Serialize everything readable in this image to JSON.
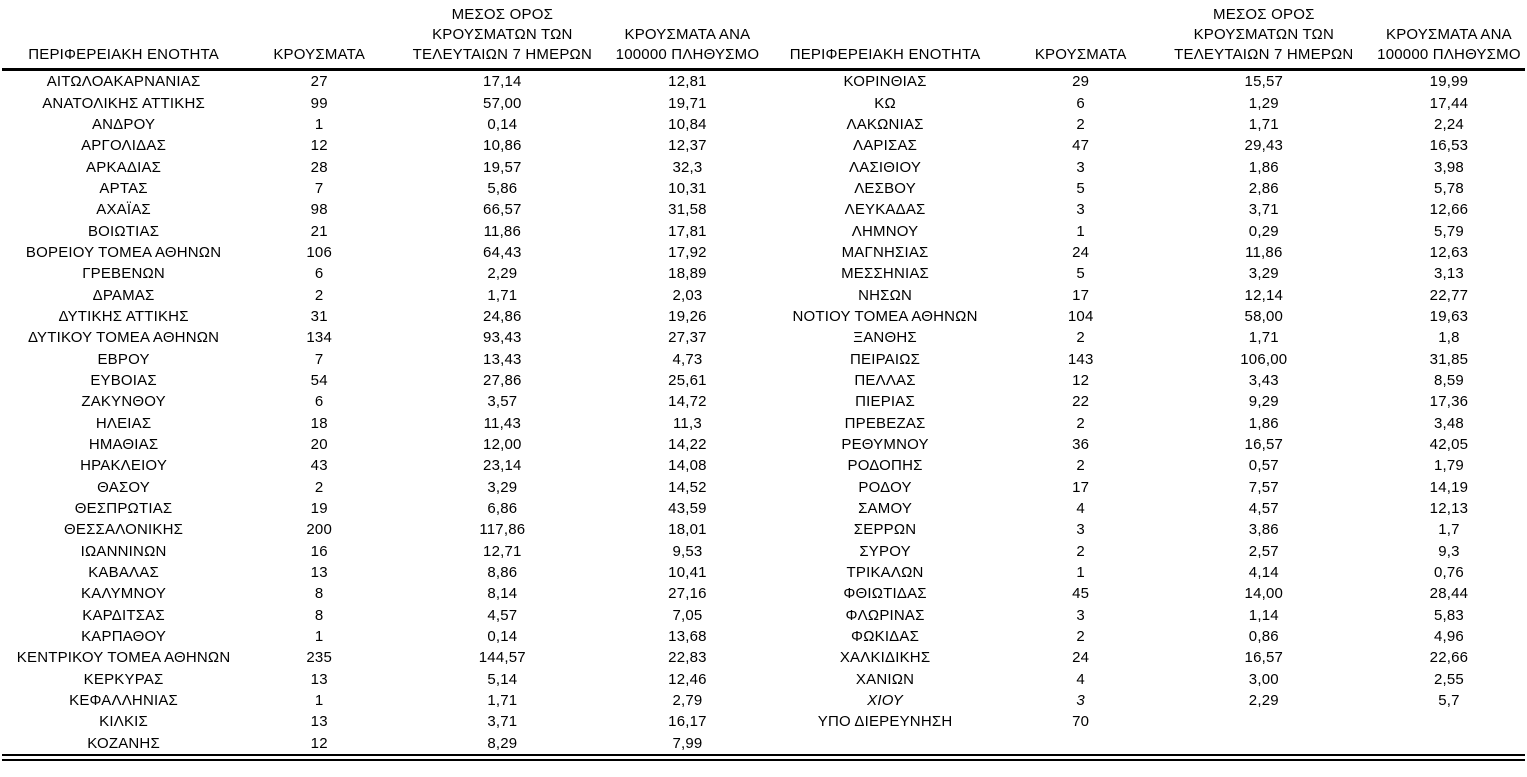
{
  "table": {
    "headers": {
      "region": "ΠΕΡΙΦΕΡΕΙΑΚΗ ΕΝΟΤΗΤΑ",
      "cases": "ΚΡΟΥΣΜΑΤΑ",
      "avg7_lines": [
        "ΜΕΣΟΣ ΟΡΟΣ",
        "ΚΡΟΥΣΜΑΤΩΝ ΤΩΝ",
        "ΤΕΛΕΥΤΑΙΩΝ 7 ΗΜΕΡΩΝ"
      ],
      "per100k_lines": [
        "ΚΡΟΥΣΜΑΤΑ ΑΝΑ",
        "100000 ΠΛΗΘΥΣΜΟ"
      ]
    },
    "left_rows": [
      {
        "name": "ΑΙΤΩΛΟΑΚΑΡΝΑΝΙΑΣ",
        "cases": "27",
        "avg7": "17,14",
        "per100k": "12,81"
      },
      {
        "name": "ΑΝΑΤΟΛΙΚΗΣ ΑΤΤΙΚΗΣ",
        "cases": "99",
        "avg7": "57,00",
        "per100k": "19,71"
      },
      {
        "name": "ΑΝΔΡΟΥ",
        "cases": "1",
        "avg7": "0,14",
        "per100k": "10,84"
      },
      {
        "name": "ΑΡΓΟΛΙΔΑΣ",
        "cases": "12",
        "avg7": "10,86",
        "per100k": "12,37"
      },
      {
        "name": "ΑΡΚΑΔΙΑΣ",
        "cases": "28",
        "avg7": "19,57",
        "per100k": "32,3"
      },
      {
        "name": "ΑΡΤΑΣ",
        "cases": "7",
        "avg7": "5,86",
        "per100k": "10,31"
      },
      {
        "name": "ΑΧΑΪΑΣ",
        "cases": "98",
        "avg7": "66,57",
        "per100k": "31,58"
      },
      {
        "name": "ΒΟΙΩΤΙΑΣ",
        "cases": "21",
        "avg7": "11,86",
        "per100k": "17,81"
      },
      {
        "name": "ΒΟΡΕΙΟΥ ΤΟΜΕΑ ΑΘΗΝΩΝ",
        "cases": "106",
        "avg7": "64,43",
        "per100k": "17,92"
      },
      {
        "name": "ΓΡΕΒΕΝΩΝ",
        "cases": "6",
        "avg7": "2,29",
        "per100k": "18,89"
      },
      {
        "name": "ΔΡΑΜΑΣ",
        "cases": "2",
        "avg7": "1,71",
        "per100k": "2,03"
      },
      {
        "name": "ΔΥΤΙΚΗΣ ΑΤΤΙΚΗΣ",
        "cases": "31",
        "avg7": "24,86",
        "per100k": "19,26"
      },
      {
        "name": "ΔΥΤΙΚΟΥ ΤΟΜΕΑ ΑΘΗΝΩΝ",
        "cases": "134",
        "avg7": "93,43",
        "per100k": "27,37"
      },
      {
        "name": "ΕΒΡΟΥ",
        "cases": "7",
        "avg7": "13,43",
        "per100k": "4,73"
      },
      {
        "name": "ΕΥΒΟΙΑΣ",
        "cases": "54",
        "avg7": "27,86",
        "per100k": "25,61"
      },
      {
        "name": "ΖΑΚΥΝΘΟΥ",
        "cases": "6",
        "avg7": "3,57",
        "per100k": "14,72"
      },
      {
        "name": "ΗΛΕΙΑΣ",
        "cases": "18",
        "avg7": "11,43",
        "per100k": "11,3"
      },
      {
        "name": "ΗΜΑΘΙΑΣ",
        "cases": "20",
        "avg7": "12,00",
        "per100k": "14,22"
      },
      {
        "name": "ΗΡΑΚΛΕΙΟΥ",
        "cases": "43",
        "avg7": "23,14",
        "per100k": "14,08"
      },
      {
        "name": "ΘΑΣΟΥ",
        "cases": "2",
        "avg7": "3,29",
        "per100k": "14,52"
      },
      {
        "name": "ΘΕΣΠΡΩΤΙΑΣ",
        "cases": "19",
        "avg7": "6,86",
        "per100k": "43,59"
      },
      {
        "name": "ΘΕΣΣΑΛΟΝΙΚΗΣ",
        "cases": "200",
        "avg7": "117,86",
        "per100k": "18,01"
      },
      {
        "name": "ΙΩΑΝΝΙΝΩΝ",
        "cases": "16",
        "avg7": "12,71",
        "per100k": "9,53"
      },
      {
        "name": "ΚΑΒΑΛΑΣ",
        "cases": "13",
        "avg7": "8,86",
        "per100k": "10,41"
      },
      {
        "name": "ΚΑΛΥΜΝΟΥ",
        "cases": "8",
        "avg7": "8,14",
        "per100k": "27,16"
      },
      {
        "name": "ΚΑΡΔΙΤΣΑΣ",
        "cases": "8",
        "avg7": "4,57",
        "per100k": "7,05"
      },
      {
        "name": "ΚΑΡΠΑΘΟΥ",
        "cases": "1",
        "avg7": "0,14",
        "per100k": "13,68"
      },
      {
        "name": "ΚΕΝΤΡΙΚΟΥ ΤΟΜΕΑ ΑΘΗΝΩΝ",
        "cases": "235",
        "avg7": "144,57",
        "per100k": "22,83"
      },
      {
        "name": "ΚΕΡΚΥΡΑΣ",
        "cases": "13",
        "avg7": "5,14",
        "per100k": "12,46"
      },
      {
        "name": "ΚΕΦΑΛΛΗΝΙΑΣ",
        "cases": "1",
        "avg7": "1,71",
        "per100k": "2,79"
      },
      {
        "name": "ΚΙΛΚΙΣ",
        "cases": "13",
        "avg7": "3,71",
        "per100k": "16,17"
      },
      {
        "name": "ΚΟΖΑΝΗΣ",
        "cases": "12",
        "avg7": "8,29",
        "per100k": "7,99"
      }
    ],
    "right_rows": [
      {
        "name": "ΚΟΡΙΝΘΙΑΣ",
        "cases": "29",
        "avg7": "15,57",
        "per100k": "19,99"
      },
      {
        "name": "ΚΩ",
        "cases": "6",
        "avg7": "1,29",
        "per100k": "17,44"
      },
      {
        "name": "ΛΑΚΩΝΙΑΣ",
        "cases": "2",
        "avg7": "1,71",
        "per100k": "2,24"
      },
      {
        "name": "ΛΑΡΙΣΑΣ",
        "cases": "47",
        "avg7": "29,43",
        "per100k": "16,53"
      },
      {
        "name": "ΛΑΣΙΘΙΟΥ",
        "cases": "3",
        "avg7": "1,86",
        "per100k": "3,98"
      },
      {
        "name": "ΛΕΣΒΟΥ",
        "cases": "5",
        "avg7": "2,86",
        "per100k": "5,78"
      },
      {
        "name": "ΛΕΥΚΑΔΑΣ",
        "cases": "3",
        "avg7": "3,71",
        "per100k": "12,66"
      },
      {
        "name": "ΛΗΜΝΟΥ",
        "cases": "1",
        "avg7": "0,29",
        "per100k": "5,79"
      },
      {
        "name": "ΜΑΓΝΗΣΙΑΣ",
        "cases": "24",
        "avg7": "11,86",
        "per100k": "12,63"
      },
      {
        "name": "ΜΕΣΣΗΝΙΑΣ",
        "cases": "5",
        "avg7": "3,29",
        "per100k": "3,13"
      },
      {
        "name": "ΝΗΣΩΝ",
        "cases": "17",
        "avg7": "12,14",
        "per100k": "22,77"
      },
      {
        "name": "ΝΟΤΙΟΥ ΤΟΜΕΑ ΑΘΗΝΩΝ",
        "cases": "104",
        "avg7": "58,00",
        "per100k": "19,63"
      },
      {
        "name": "ΞΑΝΘΗΣ",
        "cases": "2",
        "avg7": "1,71",
        "per100k": "1,8"
      },
      {
        "name": "ΠΕΙΡΑΙΩΣ",
        "cases": "143",
        "avg7": "106,00",
        "per100k": "31,85"
      },
      {
        "name": "ΠΕΛΛΑΣ",
        "cases": "12",
        "avg7": "3,43",
        "per100k": "8,59"
      },
      {
        "name": "ΠΙΕΡΙΑΣ",
        "cases": "22",
        "avg7": "9,29",
        "per100k": "17,36"
      },
      {
        "name": "ΠΡΕΒΕΖΑΣ",
        "cases": "2",
        "avg7": "1,86",
        "per100k": "3,48"
      },
      {
        "name": "ΡΕΘΥΜΝΟΥ",
        "cases": "36",
        "avg7": "16,57",
        "per100k": "42,05"
      },
      {
        "name": "ΡΟΔΟΠΗΣ",
        "cases": "2",
        "avg7": "0,57",
        "per100k": "1,79"
      },
      {
        "name": "ΡΟΔΟΥ",
        "cases": "17",
        "avg7": "7,57",
        "per100k": "14,19"
      },
      {
        "name": "ΣΑΜΟΥ",
        "cases": "4",
        "avg7": "4,57",
        "per100k": "12,13"
      },
      {
        "name": "ΣΕΡΡΩΝ",
        "cases": "3",
        "avg7": "3,86",
        "per100k": "1,7"
      },
      {
        "name": "ΣΥΡΟΥ",
        "cases": "2",
        "avg7": "2,57",
        "per100k": "9,3"
      },
      {
        "name": "ΤΡΙΚΑΛΩΝ",
        "cases": "1",
        "avg7": "4,14",
        "per100k": "0,76"
      },
      {
        "name": "ΦΘΙΩΤΙΔΑΣ",
        "cases": "45",
        "avg7": "14,00",
        "per100k": "28,44"
      },
      {
        "name": "ΦΛΩΡΙΝΑΣ",
        "cases": "3",
        "avg7": "1,14",
        "per100k": "5,83"
      },
      {
        "name": "ΦΩΚΙΔΑΣ",
        "cases": "2",
        "avg7": "0,86",
        "per100k": "4,96"
      },
      {
        "name": "ΧΑΛΚΙΔΙΚΗΣ",
        "cases": "24",
        "avg7": "16,57",
        "per100k": "22,66"
      },
      {
        "name": "ΧΑΝΙΩΝ",
        "cases": "4",
        "avg7": "3,00",
        "per100k": "2,55"
      },
      {
        "name": "ΧΙΟΥ",
        "cases": "3",
        "avg7": "2,29",
        "per100k": "5,7",
        "italic": true
      },
      {
        "name": "ΥΠΟ ΔΙΕΡΕΥΝΗΣΗ",
        "cases": "70",
        "avg7": "",
        "per100k": ""
      }
    ]
  }
}
